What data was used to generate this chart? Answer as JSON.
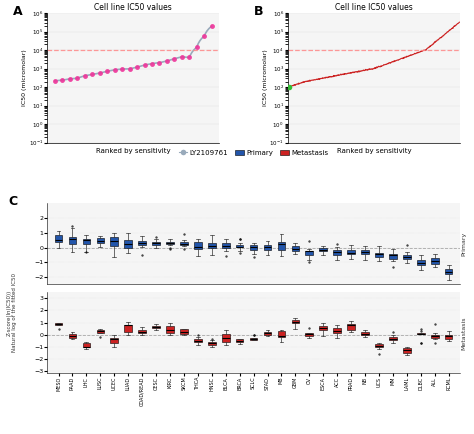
{
  "title_A": "Cell line IC50 values",
  "title_B": "Cell line IC50 values",
  "xlabel_AB": "Ranked by sensitivity",
  "ylabel_AB": "IC50 (micromolar)",
  "legend_drug": "LY2109761",
  "legend_primary": "Primary",
  "legend_metastasis": "Metastasis",
  "panel_C_label": "C",
  "panel_A_label": "A",
  "panel_B_label": "B",
  "primary_label": "Primary",
  "metastasis_label": "Metastasis",
  "ylabel_C": "Z-score(ln(IC50))\nNatural log of the fitted IC50",
  "categories": [
    "MESO",
    "PAAD",
    "LHC",
    "LUSC",
    "UCEC",
    "LUAD",
    "COAD/READ",
    "CESC",
    "KIRC",
    "SKCM",
    "THCA",
    "HNSC",
    "BLCA",
    "BRCA",
    "SCLC",
    "STAD",
    "MB",
    "GBM",
    "OV",
    "ESCA",
    "ACC",
    "PRAD",
    "NB",
    "UCS",
    "MM",
    "LAML",
    "DLBC",
    "ALL",
    "RCML"
  ],
  "blue_color": "#2255AA",
  "red_color": "#CC2222",
  "green_dot_color": "#33BB33",
  "pink_dot_color": "#EE3399",
  "gray_line_color": "#99AABB",
  "dashed_color": "#FF8888",
  "background_color": "#FFFFFF",
  "panel_bg": "#F5F5F5"
}
